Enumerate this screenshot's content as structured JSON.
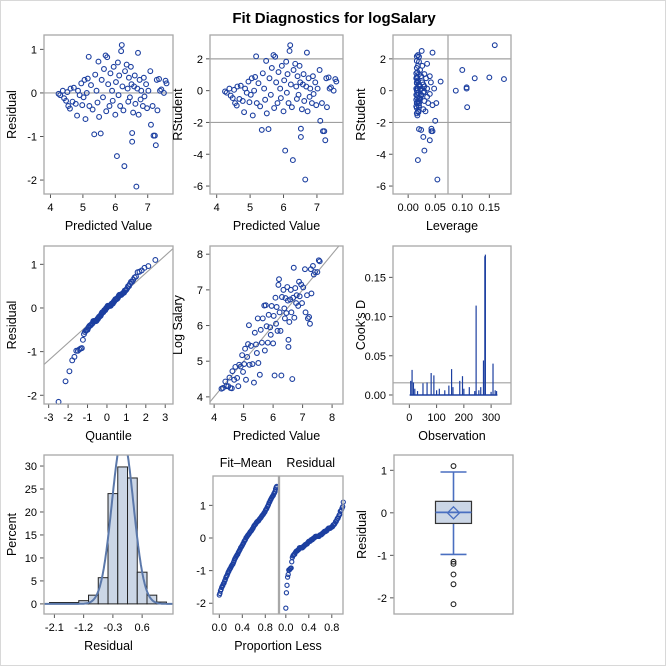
{
  "title": "Fit Diagnostics for logSalary",
  "colors": {
    "marker": "#1c3fa0",
    "refline": "#a0a0a0",
    "frame": "#a8a8a8",
    "hist_fill": "#cbd6e6",
    "curve": "#5b78aa",
    "box_line": "#4a6fc0"
  },
  "chart_data": [
    {
      "id": "residual-vs-predicted",
      "type": "scatter",
      "xlabel": "Predicted Value",
      "ylabel": "Residual",
      "xticks": [
        "4",
        "5",
        "6",
        "7"
      ],
      "yticks": [
        "-2",
        "-1",
        "0",
        "1"
      ],
      "xlim": [
        3.8,
        7.78
      ],
      "ylim": [
        -2.32,
        1.33
      ],
      "reflines_y": [
        0
      ]
    },
    {
      "id": "rstudent-vs-predicted",
      "type": "scatter",
      "xlabel": "Predicted Value",
      "ylabel": "RStudent",
      "xticks": [
        "4",
        "5",
        "6",
        "7"
      ],
      "yticks": [
        "-6",
        "-4",
        "-2",
        "0",
        "2"
      ],
      "xlim": [
        3.8,
        7.78
      ],
      "ylim": [
        -6.5,
        3.5
      ],
      "reflines_y": [
        -2,
        2
      ]
    },
    {
      "id": "rstudent-vs-leverage",
      "type": "scatter",
      "xlabel": "Leverage",
      "ylabel": "RStudent",
      "xticks": [
        "0.00",
        "0.05",
        "0.10",
        "0.15"
      ],
      "yticks": [
        "-6",
        "-4",
        "-2",
        "0",
        "2"
      ],
      "xlim": [
        -0.028,
        0.19
      ],
      "ylim": [
        -6.5,
        3.5
      ],
      "reflines_y": [
        -2,
        2
      ],
      "reflines_x": [
        0.0736
      ]
    },
    {
      "id": "residual-qq",
      "type": "scatter",
      "xlabel": "Quantile",
      "ylabel": "Residual",
      "xticks": [
        "-3",
        "-2",
        "-1",
        "0",
        "1",
        "2",
        "3"
      ],
      "yticks": [
        "-2",
        "-1",
        "0",
        "1"
      ],
      "xlim": [
        -3.24,
        3.4
      ],
      "ylim": [
        -2.2,
        1.42
      ]
    },
    {
      "id": "observed-vs-predicted",
      "type": "scatter",
      "xlabel": "Predicted Value",
      "ylabel": "Log Salary",
      "xticks": [
        "4",
        "5",
        "6",
        "7",
        "8"
      ],
      "yticks": [
        "4",
        "5",
        "6",
        "7",
        "8"
      ],
      "xlim": [
        3.86,
        8.37
      ],
      "ylim": [
        3.8,
        8.23
      ]
    },
    {
      "id": "cooks-d",
      "type": "bar",
      "xlabel": "Observation",
      "ylabel": "Cook's D",
      "xticks": [
        "0",
        "100",
        "200",
        "300"
      ],
      "yticks": [
        "0.00",
        "0.05",
        "0.10",
        "0.15"
      ],
      "xlim": [
        -60,
        373
      ],
      "ylim": [
        -0.0115,
        0.19
      ],
      "reflines_y": [
        0.0155
      ],
      "spikes": [
        [
          5,
          0.018
        ],
        [
          10,
          0.032
        ],
        [
          15,
          0.016
        ],
        [
          20,
          0.008
        ],
        [
          30,
          0.005
        ],
        [
          50,
          0.015
        ],
        [
          65,
          0.016
        ],
        [
          80,
          0.028
        ],
        [
          90,
          0.025
        ],
        [
          100,
          0.006
        ],
        [
          110,
          0.008
        ],
        [
          130,
          0.006
        ],
        [
          145,
          0.012
        ],
        [
          155,
          0.033
        ],
        [
          160,
          0.01
        ],
        [
          185,
          0.018
        ],
        [
          195,
          0.024
        ],
        [
          200,
          0.008
        ],
        [
          220,
          0.01
        ],
        [
          240,
          0.005
        ],
        [
          245,
          0.114
        ],
        [
          255,
          0.006
        ],
        [
          262,
          0.01
        ],
        [
          272,
          0.044
        ],
        [
          277,
          0.177
        ],
        [
          279,
          0.179
        ],
        [
          300,
          0.004
        ],
        [
          307,
          0.04
        ],
        [
          315,
          0.006
        ],
        [
          320,
          0.005
        ]
      ]
    },
    {
      "id": "residual-histogram",
      "type": "bar",
      "xlabel": "Residual",
      "ylabel": "Percent",
      "xticks": [
        "-2.1",
        "-1.2",
        "-0.3",
        "0.6"
      ],
      "yticks": [
        "0",
        "5",
        "10",
        "15",
        "20",
        "25",
        "30"
      ],
      "xlim": [
        -2.42,
        1.55
      ],
      "ylim": [
        -2.2,
        32.4
      ],
      "bin_width": 0.3,
      "bin_centers": [
        -2.1,
        -1.8,
        -1.5,
        -1.2,
        -0.9,
        -0.6,
        -0.3,
        0,
        0.3,
        0.6,
        0.9,
        1.2
      ],
      "percents": [
        0.3,
        0.3,
        0.3,
        0.7,
        1.9,
        5.7,
        24.0,
        29.8,
        27.4,
        6.9,
        1.9,
        0.4
      ],
      "normal_curve": {
        "mean": 0.0,
        "sd": 0.33
      }
    },
    {
      "id": "residual-fit-spread",
      "type": "scatter",
      "xlabel": "Proportion Less",
      "panels": [
        "Fit–Mean",
        "Residual"
      ],
      "xticks": [
        "0.0",
        "0.4",
        "0.8"
      ],
      "yticks": [
        "-2",
        "-1",
        "0",
        "1"
      ],
      "xlim": [
        -0.11,
        1.03
      ],
      "ylim": [
        -2.33,
        1.9
      ],
      "fit_mean_range": [
        -1.65,
        1.65
      ]
    },
    {
      "id": "residual-boxplot",
      "type": "box",
      "ylabel": "Residual",
      "yticks": [
        "-2",
        "-1",
        "0",
        "1"
      ],
      "ylim": [
        -2.38,
        1.36
      ],
      "q1": -0.25,
      "median": 0.01,
      "q3": 0.27,
      "mean": 0.0,
      "whisker_low": -0.98,
      "whisker_high": 0.96,
      "outliers": [
        1.1,
        -1.15,
        -1.2,
        -1.45,
        -1.68,
        -2.15
      ]
    }
  ],
  "points_pred_resid_lev": [
    [
      4.25,
      -0.02,
      0.03
    ],
    [
      4.3,
      -0.05,
      0.028
    ],
    [
      4.38,
      0.05,
      0.025
    ],
    [
      4.42,
      -0.12,
      0.024
    ],
    [
      4.48,
      -0.18,
      0.022
    ],
    [
      4.52,
      0.02,
      0.022
    ],
    [
      4.55,
      -0.3,
      0.02
    ],
    [
      4.6,
      -0.36,
      0.02
    ],
    [
      4.62,
      0.1,
      0.021
    ],
    [
      4.68,
      -0.2,
      0.02
    ],
    [
      4.72,
      0.12,
      0.02
    ],
    [
      4.78,
      -0.25,
      0.019
    ],
    [
      4.82,
      -0.52,
      0.019
    ],
    [
      4.85,
      0.05,
      0.018
    ],
    [
      4.9,
      -0.05,
      0.018
    ],
    [
      4.95,
      0.22,
      0.018
    ],
    [
      4.98,
      -0.28,
      0.017
    ],
    [
      5.02,
      -0.1,
      0.017
    ],
    [
      5.05,
      0.3,
      0.017
    ],
    [
      5.08,
      -0.6,
      0.017
    ],
    [
      5.12,
      0.0,
      0.016
    ],
    [
      5.15,
      0.33,
      0.016
    ],
    [
      5.18,
      0.83,
      0.016
    ],
    [
      5.2,
      -0.3,
      0.016
    ],
    [
      5.25,
      0.18,
      0.016
    ],
    [
      5.3,
      -0.38,
      0.015
    ],
    [
      5.35,
      -0.95,
      0.024
    ],
    [
      5.38,
      0.42,
      0.015
    ],
    [
      5.42,
      0.05,
      0.015
    ],
    [
      5.45,
      -0.22,
      0.015
    ],
    [
      5.48,
      0.72,
      0.016
    ],
    [
      5.5,
      -0.55,
      0.016
    ],
    [
      5.55,
      -0.93,
      0.02
    ],
    [
      5.58,
      0.3,
      0.015
    ],
    [
      5.62,
      -0.1,
      0.015
    ],
    [
      5.65,
      0.55,
      0.016
    ],
    [
      5.7,
      0.86,
      0.018
    ],
    [
      5.72,
      -0.42,
      0.016
    ],
    [
      5.75,
      0.82,
      0.02
    ],
    [
      5.78,
      0.2,
      0.016
    ],
    [
      5.82,
      -0.3,
      0.016
    ],
    [
      5.85,
      0.45,
      0.017
    ],
    [
      5.9,
      0.05,
      0.017
    ],
    [
      5.92,
      -0.18,
      0.017
    ],
    [
      5.95,
      0.6,
      0.018
    ],
    [
      6.0,
      -0.5,
      0.018
    ],
    [
      6.02,
      0.25,
      0.018
    ],
    [
      6.05,
      -1.45,
      0.03
    ],
    [
      6.08,
      0.7,
      0.02
    ],
    [
      6.1,
      -0.05,
      0.019
    ],
    [
      6.12,
      0.4,
      0.02
    ],
    [
      6.15,
      -0.3,
      0.02
    ],
    [
      6.18,
      0.96,
      0.025
    ],
    [
      6.2,
      1.1,
      0.16
    ],
    [
      6.22,
      0.15,
      0.02
    ],
    [
      6.25,
      -0.4,
      0.02
    ],
    [
      6.28,
      -1.68,
      0.018
    ],
    [
      6.3,
      0.5,
      0.022
    ],
    [
      6.35,
      0.65,
      0.035
    ],
    [
      6.38,
      0.1,
      0.022
    ],
    [
      6.4,
      -0.2,
      0.022
    ],
    [
      6.42,
      0.35,
      0.024
    ],
    [
      6.45,
      -0.1,
      0.024
    ],
    [
      6.48,
      0.6,
      0.026
    ],
    [
      6.5,
      0.2,
      0.026
    ],
    [
      6.52,
      -0.92,
      0.043
    ],
    [
      6.52,
      -1.12,
      0.028
    ],
    [
      6.55,
      -0.45,
      0.028
    ],
    [
      6.58,
      0.15,
      0.028
    ],
    [
      6.6,
      0.4,
      0.03
    ],
    [
      6.62,
      -0.25,
      0.03
    ],
    [
      6.65,
      -2.15,
      0.054
    ],
    [
      6.68,
      0.1,
      0.03
    ],
    [
      6.7,
      0.92,
      0.045
    ],
    [
      6.72,
      -0.5,
      0.032
    ],
    [
      6.75,
      0.3,
      0.033
    ],
    [
      6.78,
      -0.15,
      0.035
    ],
    [
      6.8,
      0.05,
      0.035
    ],
    [
      6.85,
      -0.3,
      0.037
    ],
    [
      6.88,
      0.35,
      0.04
    ],
    [
      6.9,
      -0.08,
      0.04
    ],
    [
      6.95,
      0.2,
      0.042
    ],
    [
      6.98,
      -0.35,
      0.045
    ],
    [
      7.02,
      0.05,
      0.048
    ],
    [
      7.08,
      0.5,
      0.1
    ],
    [
      7.1,
      -0.73,
      0.05
    ],
    [
      7.15,
      -0.3,
      0.052
    ],
    [
      7.18,
      -0.98,
      0.045
    ],
    [
      7.22,
      -0.98,
      0.043
    ],
    [
      7.25,
      -1.2,
      0.04
    ],
    [
      7.28,
      0.3,
      0.123
    ],
    [
      7.3,
      -0.4,
      0.109
    ],
    [
      7.35,
      0.32,
      0.15
    ],
    [
      7.38,
      0.05,
      0.108
    ],
    [
      7.42,
      0.08,
      0.108
    ],
    [
      7.5,
      0.0,
      0.088
    ],
    [
      7.55,
      0.28,
      0.177
    ],
    [
      7.58,
      0.22,
      0.06
    ]
  ]
}
